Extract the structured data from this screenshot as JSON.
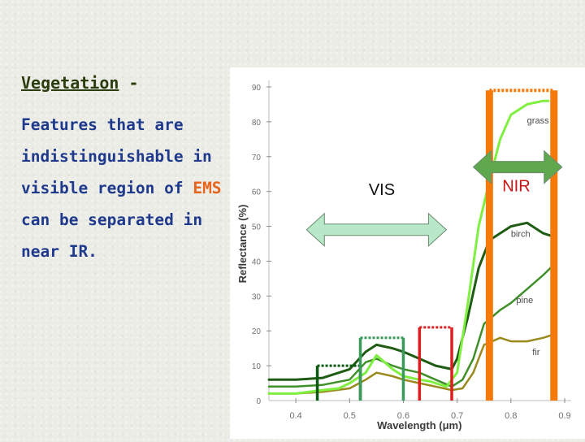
{
  "slide": {
    "heading": "Vegetation",
    "heading_suffix": " -",
    "lines": [
      "Features that are",
      "indistinguishable in",
      "visible region of ",
      "can be separated in",
      "near IR."
    ],
    "highlight": "EMS"
  },
  "colors": {
    "heading": "#2b3d0f",
    "body": "#1f3a8c",
    "highlight": "#e8641a",
    "grass": "#80f040",
    "birch": "#1e5c14",
    "pine": "#3f8f2a",
    "fir": "#9a8a1e",
    "vis_arrow": "#b8e8c8",
    "nir_arrow": "#5fa84e",
    "nir_band": "#f57a0a"
  },
  "chart_data": {
    "type": "line",
    "xlabel": "Wavelength (μm)",
    "ylabel": "Reflectance (%)",
    "xlim": [
      0.35,
      0.9
    ],
    "ylim": [
      0,
      90
    ],
    "x_ticks": [
      "0.4",
      "0.5",
      "0.6",
      "0.7",
      "0.8",
      "0.9"
    ],
    "y_ticks": [
      "0",
      "10",
      "20",
      "30",
      "40",
      "50",
      "60",
      "70",
      "80",
      "90"
    ],
    "grid": false,
    "series": [
      {
        "name": "grass",
        "x": [
          0.35,
          0.4,
          0.45,
          0.48,
          0.5,
          0.53,
          0.55,
          0.58,
          0.6,
          0.63,
          0.65,
          0.68,
          0.7,
          0.72,
          0.74,
          0.76,
          0.78,
          0.8,
          0.83,
          0.86,
          0.87
        ],
        "y": [
          2,
          2,
          3,
          3.5,
          5,
          8,
          13,
          9,
          7,
          6,
          5.5,
          4,
          8,
          28,
          50,
          63,
          75,
          82,
          85,
          86,
          86
        ]
      },
      {
        "name": "birch",
        "x": [
          0.35,
          0.4,
          0.45,
          0.5,
          0.53,
          0.55,
          0.58,
          0.6,
          0.63,
          0.66,
          0.69,
          0.7,
          0.72,
          0.74,
          0.76,
          0.78,
          0.8,
          0.83,
          0.86,
          0.88
        ],
        "y": [
          6,
          6,
          6.5,
          9,
          14,
          16,
          15,
          14,
          12,
          10,
          9,
          12,
          24,
          38,
          46,
          48,
          50,
          51,
          48,
          47
        ]
      },
      {
        "name": "pine",
        "x": [
          0.35,
          0.4,
          0.45,
          0.5,
          0.53,
          0.55,
          0.58,
          0.6,
          0.63,
          0.66,
          0.69,
          0.71,
          0.73,
          0.75,
          0.78,
          0.8,
          0.83,
          0.86,
          0.88
        ],
        "y": [
          4,
          4,
          4.5,
          6,
          11,
          12,
          10,
          9,
          8,
          6,
          4,
          6,
          12,
          22,
          26,
          28,
          32,
          36,
          39
        ]
      },
      {
        "name": "fir",
        "x": [
          0.35,
          0.4,
          0.45,
          0.5,
          0.53,
          0.55,
          0.58,
          0.6,
          0.63,
          0.66,
          0.69,
          0.71,
          0.73,
          0.75,
          0.78,
          0.8,
          0.83,
          0.86,
          0.88
        ],
        "y": [
          2,
          2,
          2.5,
          3.5,
          6,
          8,
          7,
          6,
          5,
          4,
          3,
          3.5,
          8,
          16,
          18,
          17,
          17,
          18,
          19
        ]
      }
    ],
    "region_labels": [
      {
        "text": "VIS",
        "x": 0.56,
        "y": 59
      },
      {
        "text": "NIR",
        "x": 0.81,
        "y": 60
      }
    ],
    "arrows": [
      {
        "name": "vis",
        "x": [
          0.42,
          0.68
        ],
        "y": 49
      },
      {
        "name": "nir",
        "x": [
          0.73,
          0.895
        ],
        "y": 67
      }
    ],
    "bands": [
      {
        "x": [
          0.44,
          0.52
        ],
        "y": 10,
        "color": "#0a5a12",
        "dash": true
      },
      {
        "x": [
          0.52,
          0.6
        ],
        "y": 18,
        "color": "#3a9a5a",
        "dash": true
      },
      {
        "x": [
          0.63,
          0.69
        ],
        "y": 21,
        "color": "#dc1e1e",
        "dash": true
      },
      {
        "x": [
          0.76,
          0.88
        ],
        "y": 89,
        "color": "#f57a0a",
        "dash": true,
        "thick": true
      }
    ]
  }
}
